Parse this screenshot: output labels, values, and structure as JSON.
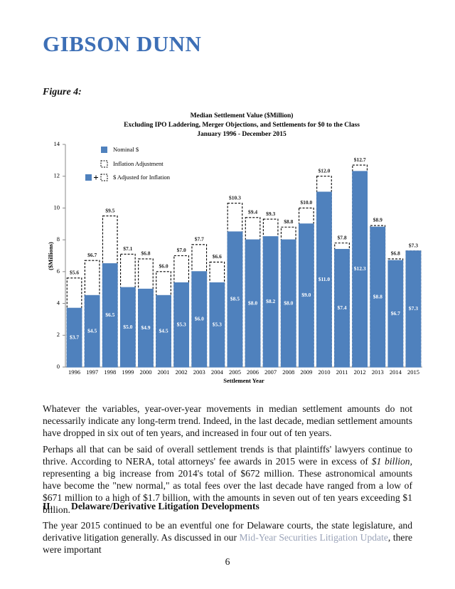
{
  "header": {
    "firm": "GIBSON DUNN"
  },
  "figure_label": "Figure 4:",
  "chart_data": {
    "type": "bar",
    "title": "Median Settlement Value ($Million)",
    "subtitle": [
      "Excluding IPO Laddering, Merger Objections, and Settlements for $0 to the Class",
      "January 1996 - December 2015"
    ],
    "x_label": "Settlement Year",
    "y_label": "($Millions)",
    "categories": [
      "1996",
      "1997",
      "1998",
      "1999",
      "2000",
      "2001",
      "2002",
      "2003",
      "2004",
      "2005",
      "2006",
      "2007",
      "2008",
      "2009",
      "2010",
      "2011",
      "2012",
      "2013",
      "2014",
      "2015"
    ],
    "series": [
      {
        "name": "Nominal $",
        "color": "#4f81bd",
        "values": [
          3.7,
          4.5,
          6.5,
          5.0,
          4.9,
          4.5,
          5.3,
          6.0,
          5.3,
          8.5,
          8.0,
          8.2,
          8.0,
          9.0,
          11.0,
          7.4,
          12.3,
          8.8,
          6.7,
          7.3
        ],
        "value_labels": [
          "$3.7",
          "$4.5",
          "$6.5",
          "$5.0",
          "$4.9",
          "$4.5",
          "$5.3",
          "$6.0",
          "$5.3",
          "$8.5",
          "$8.0",
          "$8.2",
          "$8.0",
          "$9.0",
          "$11.0",
          "$7.4",
          "$12.3",
          "$8.8",
          "$6.7",
          "$7.3"
        ]
      },
      {
        "name": "$ Adjusted for Inflation",
        "color": "#ffffff",
        "values": [
          5.6,
          6.7,
          9.5,
          7.1,
          6.8,
          6.0,
          7.0,
          7.7,
          6.6,
          10.3,
          9.4,
          9.3,
          8.8,
          10.0,
          12.0,
          7.8,
          12.7,
          8.9,
          6.8,
          7.3
        ],
        "value_labels": [
          "$5.6",
          "$6.7",
          "$9.5",
          "$7.1",
          "$6.8",
          "$6.0",
          "$7.0",
          "$7.7",
          "$6.6",
          "$10.3",
          "$9.4",
          "$9.3",
          "$8.8",
          "$10.0",
          "$12.0",
          "$7.8",
          "$12.7",
          "$8.9",
          "$6.8",
          "$7.3"
        ]
      }
    ],
    "adjustment_legend": "Inflation Adjustment",
    "ylim": [
      0,
      14
    ],
    "yticks": [
      0,
      2,
      4,
      6,
      8,
      10,
      12,
      14
    ],
    "grid": false
  },
  "paragraphs": [
    {
      "text": "Whatever the variables, year-over-year movements in median settlement amounts do not necessarily indicate any long-term trend. Indeed, in the last decade, median settlement amounts have dropped in six out of ten years, and increased in four out of ten years."
    },
    {
      "before": "Perhaps all that can be said of overall settlement trends is that plaintiffs' lawyers continue to thrive. According to NERA, total attorneys' fee awards in 2015 were in excess of ",
      "emphasis": "$1 billion,",
      "after": " representing a big increase from 2014's total of $672 million.  These astronomical amounts have become the \"new normal,\" as total fees over the last decade have ranged from a low of $671 million to a high of $1.7 billion, with the amounts in seven out of ten years exceeding $1 billion."
    }
  ],
  "section": {
    "number": "II.",
    "title": "Delaware/Derivative Litigation Developments",
    "before": "The year 2015 continued to be an eventful one for Delaware courts, the state legislature, and derivative litigation generally.  As discussed in our ",
    "link": "Mid-Year Securities Litigation Update",
    "after": ", there were important"
  },
  "page_number": "6"
}
